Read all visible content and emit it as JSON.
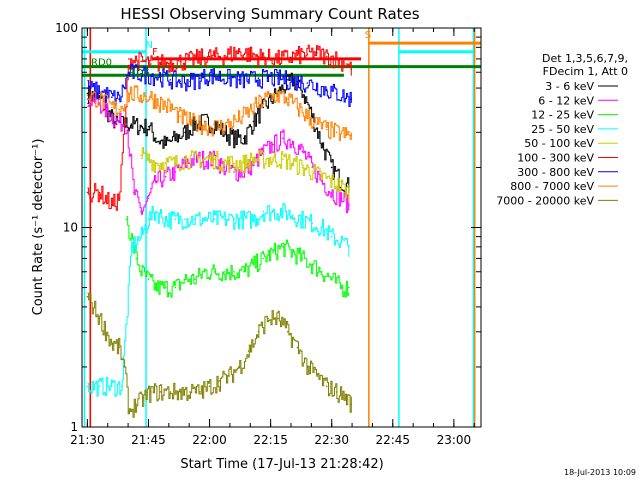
{
  "chart_data": {
    "type": "line",
    "title": "HESSI Observing Summary Count Rates",
    "xlabel": "Start Time (17-Jul-13 21:28:42)",
    "ylabel": "Count Rate (s⁻¹ detector⁻¹)",
    "xlim": [
      21.478,
      23.111
    ],
    "ylim": [
      1,
      100
    ],
    "yscale": "log",
    "x_ticks": [
      {
        "label": "21:30",
        "hour": 21.5
      },
      {
        "label": "21:45",
        "hour": 21.75
      },
      {
        "label": "22:00",
        "hour": 22.0
      },
      {
        "label": "22:15",
        "hour": 22.25
      },
      {
        "label": "22:30",
        "hour": 22.5
      },
      {
        "label": "22:45",
        "hour": 22.75
      },
      {
        "label": "23:00",
        "hour": 23.0
      }
    ],
    "y_ticks": [
      {
        "label": "1",
        "value": 1
      },
      {
        "label": "10",
        "value": 10
      },
      {
        "label": "100",
        "value": 100
      }
    ],
    "legend": {
      "position": "right",
      "header": [
        "Det 1,3,5,6,7,9,",
        "FDecim 1, Att 0"
      ]
    },
    "series": [
      {
        "name": "3 - 6 keV",
        "color": "#000000",
        "points": [
          [
            21.5,
            47
          ],
          [
            21.55,
            44
          ],
          [
            21.58,
            38
          ],
          [
            21.62,
            33
          ],
          [
            21.68,
            33
          ],
          [
            21.72,
            32
          ],
          [
            21.75,
            32
          ],
          [
            21.78,
            28
          ],
          [
            21.82,
            26
          ],
          [
            21.86,
            28
          ],
          [
            21.9,
            30
          ],
          [
            21.94,
            33
          ],
          [
            21.98,
            34
          ],
          [
            22.02,
            33
          ],
          [
            22.06,
            30
          ],
          [
            22.1,
            28
          ],
          [
            22.14,
            28
          ],
          [
            22.18,
            34
          ],
          [
            22.22,
            40
          ],
          [
            22.26,
            45
          ],
          [
            22.3,
            50
          ],
          [
            22.34,
            55
          ],
          [
            22.38,
            48
          ],
          [
            22.42,
            36
          ],
          [
            22.46,
            26
          ],
          [
            22.5,
            20
          ],
          [
            22.54,
            17
          ],
          [
            22.57,
            16
          ]
        ]
      },
      {
        "name": "6 - 12 keV",
        "color": "#ff00ff",
        "points": [
          [
            21.5,
            44
          ],
          [
            21.55,
            42
          ],
          [
            21.58,
            38
          ],
          [
            21.62,
            34
          ],
          [
            21.66,
            33
          ],
          [
            21.69,
            15
          ],
          [
            21.72,
            12
          ],
          [
            21.75,
            14
          ],
          [
            21.78,
            17
          ],
          [
            21.82,
            18
          ],
          [
            21.86,
            19
          ],
          [
            21.9,
            21
          ],
          [
            21.94,
            22
          ],
          [
            21.98,
            22
          ],
          [
            22.02,
            22
          ],
          [
            22.06,
            20
          ],
          [
            22.1,
            19
          ],
          [
            22.14,
            19
          ],
          [
            22.18,
            21
          ],
          [
            22.22,
            24
          ],
          [
            22.26,
            26
          ],
          [
            22.3,
            28
          ],
          [
            22.34,
            27
          ],
          [
            22.38,
            24
          ],
          [
            22.42,
            20
          ],
          [
            22.46,
            17
          ],
          [
            22.5,
            15
          ],
          [
            22.54,
            14
          ],
          [
            22.57,
            13
          ]
        ]
      },
      {
        "name": "12 - 25 keV",
        "color": "#00ff00",
        "points": [
          [
            21.66,
            11
          ],
          [
            21.7,
            7
          ],
          [
            21.72,
            6
          ],
          [
            21.75,
            5.5
          ],
          [
            21.78,
            5
          ],
          [
            21.82,
            5
          ],
          [
            21.86,
            5
          ],
          [
            21.9,
            5.5
          ],
          [
            21.94,
            5.5
          ],
          [
            21.98,
            6
          ],
          [
            22.02,
            6
          ],
          [
            22.06,
            6
          ],
          [
            22.1,
            6
          ],
          [
            22.14,
            6
          ],
          [
            22.18,
            6.5
          ],
          [
            22.22,
            7
          ],
          [
            22.26,
            7.5
          ],
          [
            22.3,
            8
          ],
          [
            22.34,
            7.5
          ],
          [
            22.38,
            7
          ],
          [
            22.42,
            6.5
          ],
          [
            22.46,
            6
          ],
          [
            22.5,
            5.5
          ],
          [
            22.54,
            5
          ],
          [
            22.57,
            5
          ]
        ]
      },
      {
        "name": "25 - 50 keV",
        "color": "#00ffff",
        "points": [
          [
            21.5,
            1.6
          ],
          [
            21.55,
            1.6
          ],
          [
            21.6,
            1.6
          ],
          [
            21.64,
            1.6
          ],
          [
            21.68,
            8
          ],
          [
            21.72,
            9
          ],
          [
            21.75,
            11
          ],
          [
            21.78,
            12
          ],
          [
            21.82,
            11
          ],
          [
            21.86,
            11
          ],
          [
            21.9,
            11
          ],
          [
            21.94,
            11
          ],
          [
            21.98,
            11
          ],
          [
            22.02,
            11
          ],
          [
            22.06,
            11
          ],
          [
            22.1,
            11
          ],
          [
            22.14,
            11
          ],
          [
            22.18,
            11
          ],
          [
            22.22,
            12
          ],
          [
            22.26,
            12
          ],
          [
            22.3,
            12
          ],
          [
            22.34,
            11.5
          ],
          [
            22.38,
            11
          ],
          [
            22.42,
            10.5
          ],
          [
            22.46,
            10
          ],
          [
            22.5,
            9
          ],
          [
            22.54,
            8.5
          ],
          [
            22.57,
            8
          ]
        ]
      },
      {
        "name": "50 - 100 keV",
        "color": "#cccc00",
        "points": [
          [
            21.72,
            23
          ],
          [
            21.75,
            22
          ],
          [
            21.78,
            21
          ],
          [
            21.82,
            21
          ],
          [
            21.86,
            21
          ],
          [
            21.9,
            22
          ],
          [
            21.94,
            22
          ],
          [
            21.98,
            22
          ],
          [
            22.02,
            22
          ],
          [
            22.06,
            21
          ],
          [
            22.1,
            21
          ],
          [
            22.14,
            21
          ],
          [
            22.18,
            22
          ],
          [
            22.22,
            22
          ],
          [
            22.26,
            22
          ],
          [
            22.3,
            22
          ],
          [
            22.34,
            21
          ],
          [
            22.38,
            20
          ],
          [
            22.42,
            19
          ],
          [
            22.46,
            18
          ],
          [
            22.5,
            17
          ],
          [
            22.54,
            16
          ],
          [
            22.57,
            15
          ]
        ]
      },
      {
        "name": "100 - 300 keV",
        "color": "#ff0000",
        "points": [
          [
            21.5,
            15
          ],
          [
            21.55,
            15
          ],
          [
            21.6,
            13
          ],
          [
            21.63,
            14
          ],
          [
            21.67,
            70
          ],
          [
            21.72,
            68
          ],
          [
            21.76,
            66
          ],
          [
            21.8,
            67
          ],
          [
            21.84,
            67
          ],
          [
            21.88,
            68
          ],
          [
            21.92,
            69
          ],
          [
            21.96,
            71
          ],
          [
            22.0,
            72
          ],
          [
            22.04,
            72
          ],
          [
            22.08,
            74
          ],
          [
            22.12,
            76
          ],
          [
            22.16,
            74
          ],
          [
            22.2,
            72
          ],
          [
            22.24,
            71
          ],
          [
            22.28,
            70
          ],
          [
            22.32,
            71
          ],
          [
            22.36,
            73
          ],
          [
            22.4,
            74
          ],
          [
            22.44,
            75
          ],
          [
            22.48,
            72
          ],
          [
            22.52,
            70
          ],
          [
            22.56,
            66
          ],
          [
            22.58,
            62
          ]
        ]
      },
      {
        "name": "300 - 800 keV",
        "color": "#0000ff",
        "points": [
          [
            21.5,
            50
          ],
          [
            21.55,
            48
          ],
          [
            21.6,
            45
          ],
          [
            21.63,
            44
          ],
          [
            21.67,
            60
          ],
          [
            21.72,
            59
          ],
          [
            21.76,
            58
          ],
          [
            21.8,
            57
          ],
          [
            21.84,
            55
          ],
          [
            21.88,
            54
          ],
          [
            21.92,
            54
          ],
          [
            21.96,
            56
          ],
          [
            22.0,
            58
          ],
          [
            22.04,
            57
          ],
          [
            22.08,
            56
          ],
          [
            22.12,
            55
          ],
          [
            22.16,
            55
          ],
          [
            22.2,
            56
          ],
          [
            22.24,
            56
          ],
          [
            22.28,
            56
          ],
          [
            22.32,
            55
          ],
          [
            22.36,
            54
          ],
          [
            22.4,
            53
          ],
          [
            22.44,
            51
          ],
          [
            22.48,
            49
          ],
          [
            22.52,
            47
          ],
          [
            22.56,
            45
          ],
          [
            22.58,
            44
          ]
        ]
      },
      {
        "name": "800 - 7000 keV",
        "color": "#ff8000",
        "points": [
          [
            21.5,
            46
          ],
          [
            21.55,
            44
          ],
          [
            21.6,
            40
          ],
          [
            21.63,
            39
          ],
          [
            21.67,
            47
          ],
          [
            21.72,
            46
          ],
          [
            21.76,
            45
          ],
          [
            21.8,
            42
          ],
          [
            21.84,
            40
          ],
          [
            21.88,
            36
          ],
          [
            21.92,
            34
          ],
          [
            21.96,
            33
          ],
          [
            22.0,
            32
          ],
          [
            22.04,
            32
          ],
          [
            22.08,
            33
          ],
          [
            22.12,
            35
          ],
          [
            22.16,
            38
          ],
          [
            22.2,
            42
          ],
          [
            22.24,
            45
          ],
          [
            22.28,
            46
          ],
          [
            22.32,
            44
          ],
          [
            22.36,
            40
          ],
          [
            22.4,
            36
          ],
          [
            22.44,
            33
          ],
          [
            22.48,
            31
          ],
          [
            22.52,
            30
          ],
          [
            22.56,
            29
          ],
          [
            22.58,
            29
          ]
        ]
      },
      {
        "name": "7000 - 20000 keV",
        "color": "#808000",
        "points": [
          [
            21.5,
            4.5
          ],
          [
            21.55,
            3.5
          ],
          [
            21.6,
            2.6
          ],
          [
            21.63,
            2.5
          ],
          [
            21.65,
            2.0
          ],
          [
            21.67,
            1.2
          ],
          [
            21.7,
            1.3
          ],
          [
            21.73,
            1.4
          ],
          [
            21.76,
            1.5
          ],
          [
            21.8,
            1.5
          ],
          [
            21.84,
            1.5
          ],
          [
            21.88,
            1.5
          ],
          [
            21.92,
            1.5
          ],
          [
            21.96,
            1.5
          ],
          [
            22.0,
            1.6
          ],
          [
            22.04,
            1.7
          ],
          [
            22.08,
            1.8
          ],
          [
            22.12,
            2.0
          ],
          [
            22.16,
            2.4
          ],
          [
            22.2,
            3.0
          ],
          [
            22.24,
            3.5
          ],
          [
            22.28,
            3.5
          ],
          [
            22.32,
            3.0
          ],
          [
            22.36,
            2.5
          ],
          [
            22.4,
            2.0
          ],
          [
            22.44,
            1.8
          ],
          [
            22.48,
            1.6
          ],
          [
            22.52,
            1.5
          ],
          [
            22.56,
            1.4
          ],
          [
            22.58,
            1.3
          ]
        ]
      }
    ],
    "annotations": [
      {
        "text": "N",
        "color": "#00ffff",
        "hour": 21.738,
        "value": 76
      },
      {
        "text": "F",
        "color": "#ff0000",
        "hour": 21.765,
        "value": 70
      },
      {
        "text": "RD0",
        "color": "#008000",
        "hour": 21.515,
        "value": 62
      },
      {
        "text": "RD6",
        "color": "#008000",
        "hour": 21.67,
        "value": 55
      },
      {
        "text": "S",
        "color": "#ff8000",
        "hour": 22.635,
        "value": 85
      }
    ],
    "state_bars": [
      {
        "name": "night",
        "color": "#00ffff",
        "value": 76,
        "segments": [
          [
            21.478,
            21.74
          ],
          [
            22.775,
            23.08
          ]
        ]
      },
      {
        "name": "flare",
        "color": "#ff0000",
        "value": 70,
        "segments": [
          [
            21.765,
            22.62
          ]
        ]
      },
      {
        "name": "saa",
        "color": "#ff8000",
        "value": 84,
        "segments": [
          [
            22.65,
            23.111
          ]
        ]
      },
      {
        "name": "rate-decimation",
        "color": "#008000",
        "value": 64,
        "segments": [
          [
            21.478,
            23.111
          ]
        ]
      },
      {
        "name": "rate-decimation-step",
        "color": "#008000",
        "value": 58,
        "segments": [
          [
            21.478,
            22.55
          ]
        ]
      }
    ],
    "vertical_markers": [
      {
        "color": "#00ffff",
        "hour": 21.488
      },
      {
        "color": "#ff8000",
        "hour": 21.512
      },
      {
        "color": "#ff0000",
        "hour": 21.512
      },
      {
        "color": "#00ffff",
        "hour": 21.74
      },
      {
        "color": "#ff8000",
        "hour": 22.652
      },
      {
        "color": "#00ffff",
        "hour": 22.775
      },
      {
        "color": "#00ffff",
        "hour": 23.08
      },
      {
        "color": "#ff8000",
        "hour": 23.085
      }
    ]
  },
  "footer": {
    "timestamp": "18-Jul-2013 10:09"
  }
}
